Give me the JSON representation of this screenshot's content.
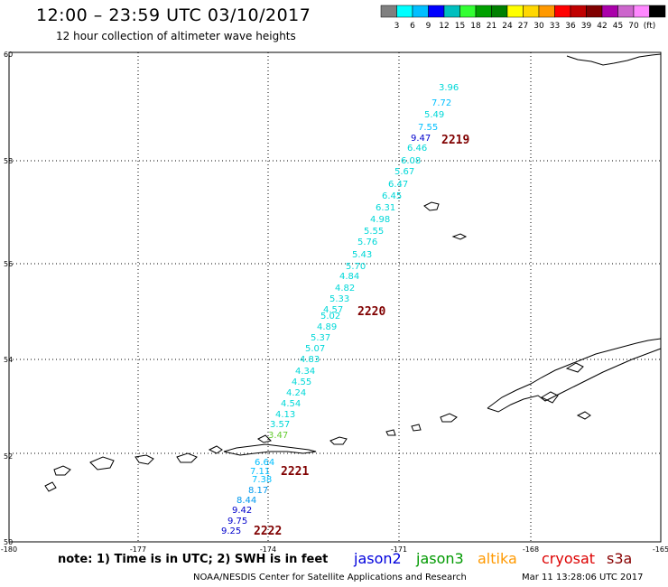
{
  "header": {
    "title": "12:00 – 23:59 UTC 03/10/2017",
    "subtitle": "12 hour collection of altimeter wave heights"
  },
  "legend": {
    "colors": [
      "#808080",
      "#00ffff",
      "#00bfff",
      "#0000ff",
      "#00bfbf",
      "#33ff33",
      "#00a000",
      "#008000",
      "#ffff00",
      "#ffd700",
      "#ff9900",
      "#ff0000",
      "#c00000",
      "#800000",
      "#aa00aa",
      "#cc66cc",
      "#ff88ff",
      "#000000"
    ],
    "labels": [
      "3",
      "6",
      "9",
      "12",
      "15",
      "18",
      "21",
      "24",
      "27",
      "30",
      "33",
      "36",
      "39",
      "42",
      "45",
      "70",
      "(ft)"
    ]
  },
  "axes": {
    "lat_labels": [
      "60",
      "58",
      "56",
      "54",
      "52",
      "50"
    ],
    "lon_labels": [
      "-180",
      "-177",
      "-174",
      "-171",
      "-168",
      "-165"
    ]
  },
  "passes": [
    {
      "id": "2219",
      "color": "#800000"
    },
    {
      "id": "2220",
      "color": "#800000"
    },
    {
      "id": "2221",
      "color": "#800000"
    },
    {
      "id": "2222",
      "color": "#800000"
    }
  ],
  "wave_heights": [
    {
      "v": "3.96",
      "color": "#00d8d8"
    },
    {
      "v": "7.72",
      "color": "#00bfff"
    },
    {
      "v": "5.49",
      "color": "#00d8d8"
    },
    {
      "v": "7.55",
      "color": "#00bfff"
    },
    {
      "v": "9.47",
      "color": "#0000cc"
    },
    {
      "v": "6.46",
      "color": "#00d8d8"
    },
    {
      "v": "6.08",
      "color": "#00d8d8"
    },
    {
      "v": "5.67",
      "color": "#00d8d8"
    },
    {
      "v": "6.47",
      "color": "#00d8d8"
    },
    {
      "v": "6.45",
      "color": "#00d8d8"
    },
    {
      "v": "6.31",
      "color": "#00d8d8"
    },
    {
      "v": "4.98",
      "color": "#00d8d8"
    },
    {
      "v": "5.55",
      "color": "#00d8d8"
    },
    {
      "v": "5.76",
      "color": "#00d8d8"
    },
    {
      "v": "5.43",
      "color": "#00d8d8"
    },
    {
      "v": "5.70",
      "color": "#00d8d8"
    },
    {
      "v": "4.84",
      "color": "#00d8d8"
    },
    {
      "v": "4.82",
      "color": "#00d8d8"
    },
    {
      "v": "5.33",
      "color": "#00d8d8"
    },
    {
      "v": "4.57",
      "color": "#00d8d8"
    },
    {
      "v": "5.02",
      "color": "#00d8d8"
    },
    {
      "v": "4.89",
      "color": "#00d8d8"
    },
    {
      "v": "5.37",
      "color": "#00d8d8"
    },
    {
      "v": "5.07",
      "color": "#00d8d8"
    },
    {
      "v": "4.83",
      "color": "#00d8d8"
    },
    {
      "v": "4.34",
      "color": "#00d8d8"
    },
    {
      "v": "4.55",
      "color": "#00d8d8"
    },
    {
      "v": "4.24",
      "color": "#00d8d8"
    },
    {
      "v": "4.54",
      "color": "#00d8d8"
    },
    {
      "v": "4.13",
      "color": "#00d8d8"
    },
    {
      "v": "3.57",
      "color": "#00d8d8"
    },
    {
      "v": "3.47",
      "color": "#66cc33"
    },
    {
      "v": "6.64",
      "color": "#00bfff"
    },
    {
      "v": "7.11",
      "color": "#00bfff"
    },
    {
      "v": "7.38",
      "color": "#00bfff"
    },
    {
      "v": "8.17",
      "color": "#0099ee"
    },
    {
      "v": "8.44",
      "color": "#0099ee"
    },
    {
      "v": "9.42",
      "color": "#0000cc"
    },
    {
      "v": "9.75",
      "color": "#0000cc"
    },
    {
      "v": "9.25",
      "color": "#0000cc"
    }
  ],
  "footer": {
    "note": "note: 1) Time is in UTC; 2) SWH is in feet",
    "satellites": [
      {
        "name": "jason2",
        "color": "#0000dd"
      },
      {
        "name": "jason3",
        "color": "#009900"
      },
      {
        "name": "altika",
        "color": "#ff9900"
      },
      {
        "name": "cryosat",
        "color": "#dd0000"
      },
      {
        "name": "s3a",
        "color": "#880000"
      }
    ],
    "credit": "NOAA/NESDIS Center for Satellite Applications and Research",
    "timestamp": "Mar 11 13:28:06 UTC 2017"
  }
}
